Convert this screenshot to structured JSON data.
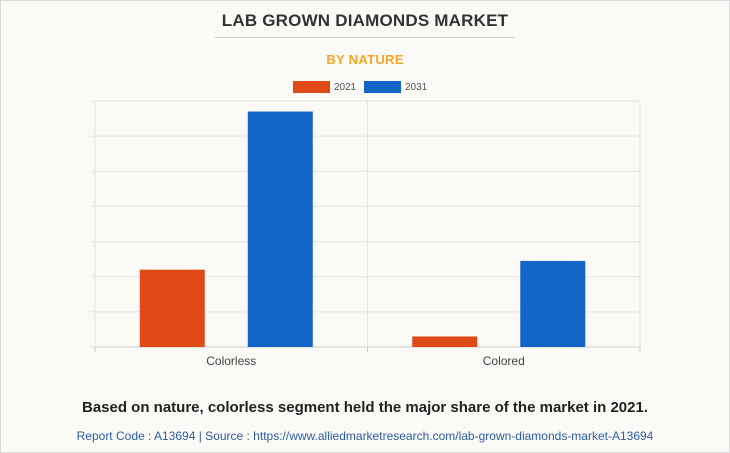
{
  "header": {
    "title": "LAB GROWN DIAMONDS MARKET",
    "subtitle": "BY NATURE"
  },
  "colors": {
    "series_2021": "#e04a17",
    "series_2031": "#1366c5",
    "subtitle": "#f5a623",
    "grid": "#e3e3e3",
    "axis": "#cccccc"
  },
  "chart_data": {
    "type": "bar",
    "categories": [
      "Colorless",
      "Colored"
    ],
    "series": [
      {
        "name": "2021",
        "values": [
          22,
          3
        ]
      },
      {
        "name": "2031",
        "values": [
          67,
          24.5
        ]
      }
    ],
    "ylim": [
      0,
      70
    ],
    "grid": true,
    "legend_position": "top-center",
    "xlabel": "",
    "ylabel": ""
  },
  "footer": {
    "caption": "Based on nature, colorless segment held the major share of the market in 2021.",
    "source": "Report Code : A13694  |  Source : https://www.alliedmarketresearch.com/lab-grown-diamonds-market-A13694"
  }
}
